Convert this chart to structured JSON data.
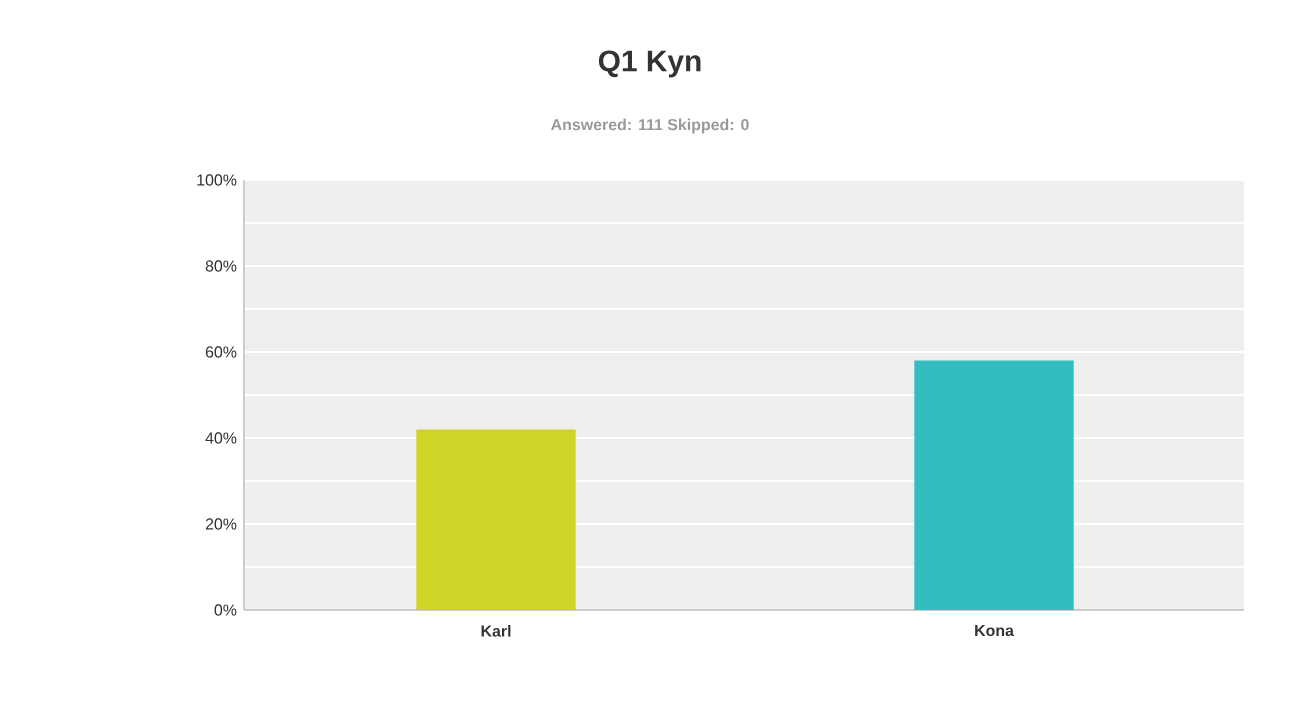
{
  "chart_data": {
    "type": "bar",
    "title": "Q1 Kyn",
    "subtitle": "Answered: 111    Skipped: 0",
    "categories": [
      "Karl",
      "Kona"
    ],
    "values": [
      42,
      58
    ],
    "colors": [
      "#cfd427",
      "#33bdc0"
    ],
    "ylim": [
      0,
      100
    ],
    "yticks": [
      {
        "value": 0,
        "label": "0%"
      },
      {
        "value": 10,
        "label": null
      },
      {
        "value": 20,
        "label": "20%"
      },
      {
        "value": 30,
        "label": null
      },
      {
        "value": 40,
        "label": "40%"
      },
      {
        "value": 50,
        "label": null
      },
      {
        "value": 60,
        "label": "60%"
      },
      {
        "value": 70,
        "label": null
      },
      {
        "value": 80,
        "label": "80%"
      },
      {
        "value": 90,
        "label": null
      },
      {
        "value": 100,
        "label": "100%"
      }
    ],
    "grid": "y"
  }
}
